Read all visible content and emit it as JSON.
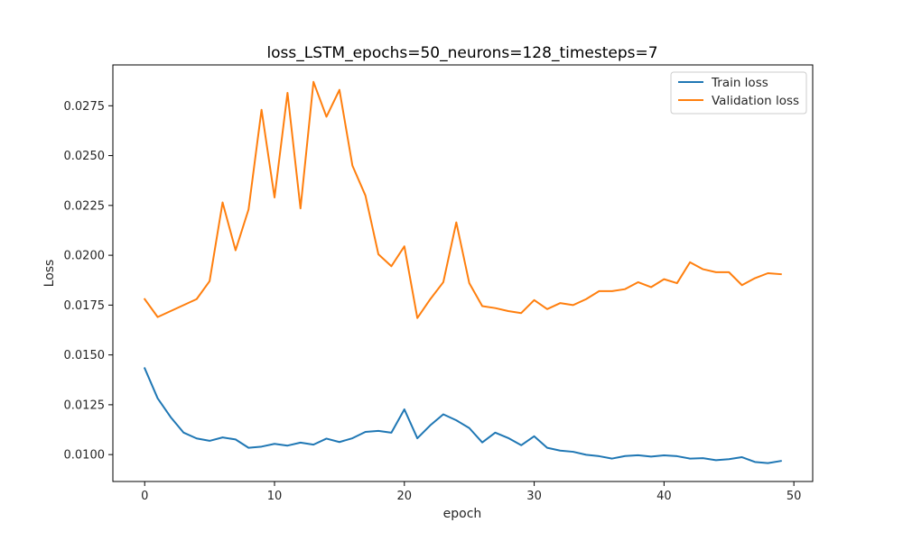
{
  "chart_data": {
    "type": "line",
    "title": "loss_LSTM_epochs=50_neurons=128_timesteps=7",
    "xlabel": "epoch",
    "ylabel": "Loss",
    "xlim": [
      -2.45,
      51.45
    ],
    "ylim": [
      0.00865,
      0.02955
    ],
    "x_ticks": [
      0,
      10,
      20,
      30,
      40,
      50
    ],
    "x_tick_labels": [
      "0",
      "10",
      "20",
      "30",
      "40",
      "50"
    ],
    "y_ticks": [
      0.01,
      0.0125,
      0.015,
      0.0175,
      0.02,
      0.0225,
      0.025,
      0.0275
    ],
    "y_tick_labels": [
      "0.0100",
      "0.0125",
      "0.0150",
      "0.0175",
      "0.0200",
      "0.0225",
      "0.0250",
      "0.0275"
    ],
    "grid": false,
    "legend": "top-right",
    "x": [
      0,
      1,
      2,
      3,
      4,
      5,
      6,
      7,
      8,
      9,
      10,
      11,
      12,
      13,
      14,
      15,
      16,
      17,
      18,
      19,
      20,
      21,
      22,
      23,
      24,
      25,
      26,
      27,
      28,
      29,
      30,
      31,
      32,
      33,
      34,
      35,
      36,
      37,
      38,
      39,
      40,
      41,
      42,
      43,
      44,
      45,
      46,
      47,
      48,
      49
    ],
    "series": [
      {
        "name": "Train loss",
        "color": "#1f77b4",
        "values": [
          0.01433,
          0.01282,
          0.01188,
          0.0111,
          0.01081,
          0.01069,
          0.01086,
          0.01076,
          0.01034,
          0.0104,
          0.01054,
          0.01045,
          0.0106,
          0.0105,
          0.0108,
          0.01063,
          0.01082,
          0.01114,
          0.01119,
          0.0111,
          0.01227,
          0.01082,
          0.01147,
          0.01202,
          0.01172,
          0.01133,
          0.01061,
          0.0111,
          0.01083,
          0.01047,
          0.01092,
          0.01034,
          0.0102,
          0.01014,
          0.00999,
          0.00992,
          0.0098,
          0.00993,
          0.00997,
          0.0099,
          0.00996,
          0.00992,
          0.0098,
          0.00982,
          0.00972,
          0.00977,
          0.00987,
          0.00963,
          0.00957,
          0.00968
        ]
      },
      {
        "name": "Validation loss",
        "color": "#ff7f0e",
        "values": [
          0.0178,
          0.0169,
          0.0172,
          0.0175,
          0.0178,
          0.0187,
          0.02265,
          0.02025,
          0.0223,
          0.0273,
          0.0229,
          0.02815,
          0.02235,
          0.0287,
          0.02695,
          0.0283,
          0.0245,
          0.023,
          0.02005,
          0.01945,
          0.02045,
          0.01685,
          0.0178,
          0.01865,
          0.02165,
          0.0186,
          0.01745,
          0.01735,
          0.0172,
          0.0171,
          0.01775,
          0.0173,
          0.0176,
          0.0175,
          0.0178,
          0.0182,
          0.0182,
          0.0183,
          0.01865,
          0.0184,
          0.0188,
          0.0186,
          0.01965,
          0.0193,
          0.01915,
          0.01915,
          0.0185,
          0.01885,
          0.0191,
          0.01905
        ]
      }
    ]
  }
}
